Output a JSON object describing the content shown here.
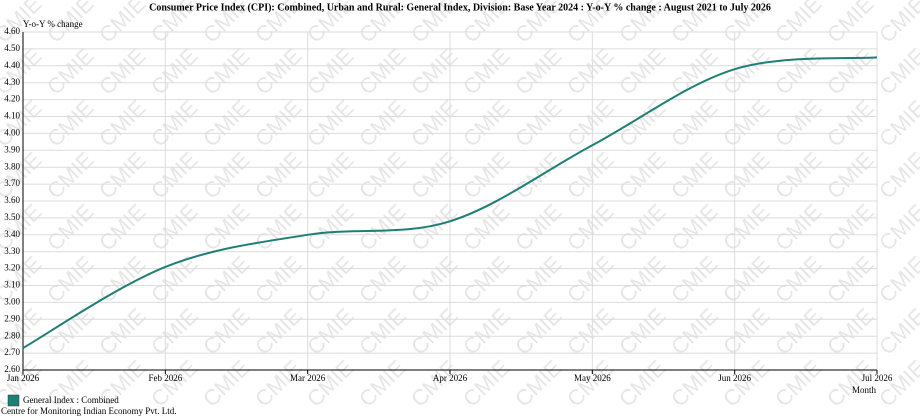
{
  "chart_data": {
    "type": "line",
    "title": "Consumer Price Index (CPI): Combined, Urban and Rural: General Index, Division: Base Year 2024 : Y-o-Y % change : August 2021 to July 2026",
    "y_label": "Y-o-Y % change",
    "x_label": "Month",
    "watermark": "CMIE",
    "footer": "Centre for Monitoring Indian Economy Pvt. Ltd.",
    "categories": [
      "Jan 2026",
      "Feb 2026",
      "Mar 2026",
      "Apr 2026",
      "May 2026",
      "Jun 2026",
      "Jul 2026"
    ],
    "series": [
      {
        "name": "General Index : Combined",
        "color": "#1e7f74",
        "values": [
          2.73,
          3.21,
          3.4,
          3.48,
          3.93,
          4.38,
          4.45
        ]
      }
    ],
    "ylim": [
      2.6,
      4.6
    ],
    "yticks": [
      {
        "value": 2.6,
        "label": "2.60"
      },
      {
        "value": 2.7,
        "label": "2.70"
      },
      {
        "value": 2.8,
        "label": "2.80"
      },
      {
        "value": 2.9,
        "label": "2.90"
      },
      {
        "value": 3.0,
        "label": "3.00"
      },
      {
        "value": 3.1,
        "label": "3.10"
      },
      {
        "value": 3.2,
        "label": "3.20"
      },
      {
        "value": 3.3,
        "label": "3.30"
      },
      {
        "value": 3.4,
        "label": "3.40"
      },
      {
        "value": 3.5,
        "label": "3.50"
      },
      {
        "value": 3.6,
        "label": "3.60"
      },
      {
        "value": 3.7,
        "label": "3.70"
      },
      {
        "value": 3.8,
        "label": "3.80"
      },
      {
        "value": 3.9,
        "label": "3.90"
      },
      {
        "value": 4.0,
        "label": "4.00"
      },
      {
        "value": 4.1,
        "label": "4.10"
      },
      {
        "value": 4.2,
        "label": "4.20"
      },
      {
        "value": 4.3,
        "label": "4.30"
      },
      {
        "value": 4.4,
        "label": "4.40"
      },
      {
        "value": 4.5,
        "label": "4.50"
      },
      {
        "value": 4.6,
        "label": "4.60"
      }
    ],
    "grid": true
  }
}
